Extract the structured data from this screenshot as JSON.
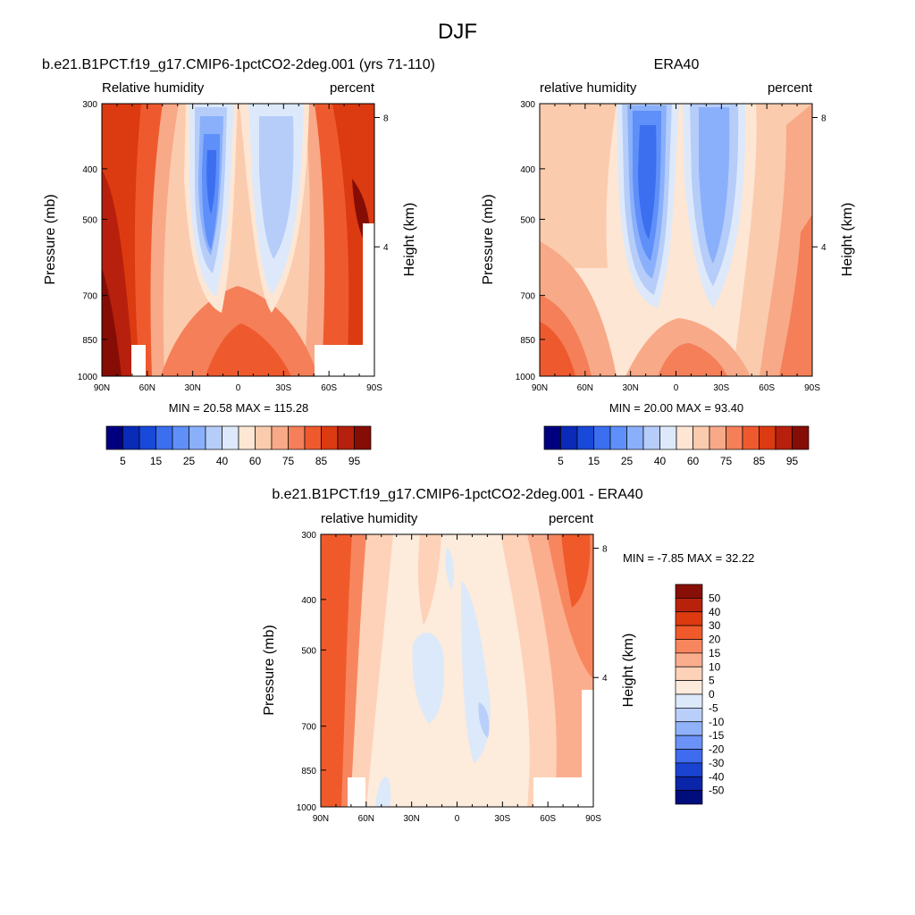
{
  "figure": {
    "title": "DJF"
  },
  "chart_data": [
    {
      "type": "heatmap",
      "title": "b.e21.B1PCT.f19_g17.CMIP6-1pctCO2-2deg.001 (yrs 71-110)",
      "left_label": "Relative humidity",
      "right_label": "percent",
      "ylabel": "Pressure (mb)",
      "ylabel_right": "Height (km)",
      "x_ticks": [
        "90N",
        "60N",
        "30N",
        "0",
        "30S",
        "60S",
        "90S"
      ],
      "y_ticks": [
        "300",
        "400",
        "500",
        "700",
        "850",
        "1000"
      ],
      "y_ticks_right": [
        "8",
        "4"
      ],
      "stats": "MIN =  20.58  MAX = 115.28",
      "colorbar_labels": [
        "5",
        "15",
        "25",
        "40",
        "60",
        "75",
        "85",
        "95"
      ]
    },
    {
      "type": "heatmap",
      "title": "ERA40",
      "left_label": "relative humidity",
      "right_label": "percent",
      "ylabel": "Pressure (mb)",
      "ylabel_right": "Height (km)",
      "x_ticks": [
        "90N",
        "60N",
        "30N",
        "0",
        "30S",
        "60S",
        "90S"
      ],
      "y_ticks": [
        "300",
        "400",
        "500",
        "700",
        "850",
        "1000"
      ],
      "y_ticks_right": [
        "8",
        "4"
      ],
      "stats": "MIN =  20.00  MAX =  93.40",
      "colorbar_labels": [
        "5",
        "15",
        "25",
        "40",
        "60",
        "75",
        "85",
        "95"
      ]
    },
    {
      "type": "heatmap",
      "title": "b.e21.B1PCT.f19_g17.CMIP6-1pctCO2-2deg.001 - ERA40",
      "left_label": "relative humidity",
      "right_label": "percent",
      "ylabel": "Pressure (mb)",
      "ylabel_right": "Height (km)",
      "x_ticks": [
        "90N",
        "60N",
        "30N",
        "0",
        "30S",
        "60S",
        "90S"
      ],
      "y_ticks": [
        "300",
        "400",
        "500",
        "700",
        "850",
        "1000"
      ],
      "y_ticks_right": [
        "8",
        "4"
      ],
      "stats": "MIN =  -7.85  MAX =  32.22",
      "colorbar_labels": [
        "50",
        "40",
        "30",
        "20",
        "15",
        "10",
        "5",
        "0",
        "-5",
        "-10",
        "-15",
        "-20",
        "-30",
        "-40",
        "-50"
      ]
    }
  ],
  "palettes": {
    "absolute": [
      "#00007f",
      "#0a2bb8",
      "#1949d8",
      "#3b6ff0",
      "#5f8ff8",
      "#8ab0fb",
      "#b6cdf9",
      "#dde9fa",
      "#fde6d3",
      "#fbcbae",
      "#f8a988",
      "#f47f58",
      "#ee5a2e",
      "#dc3a10",
      "#b7200c",
      "#860d06"
    ],
    "diff": [
      "#870f07",
      "#b8220b",
      "#dd3a10",
      "#f05a2a",
      "#f7865e",
      "#fbae8e",
      "#fdd2b8",
      "#fdebdc",
      "#dce9fa",
      "#b9cffa",
      "#8fb2fa",
      "#6b92f6",
      "#3f6bef",
      "#1b43d2",
      "#0a25a8",
      "#000d7c"
    ]
  }
}
